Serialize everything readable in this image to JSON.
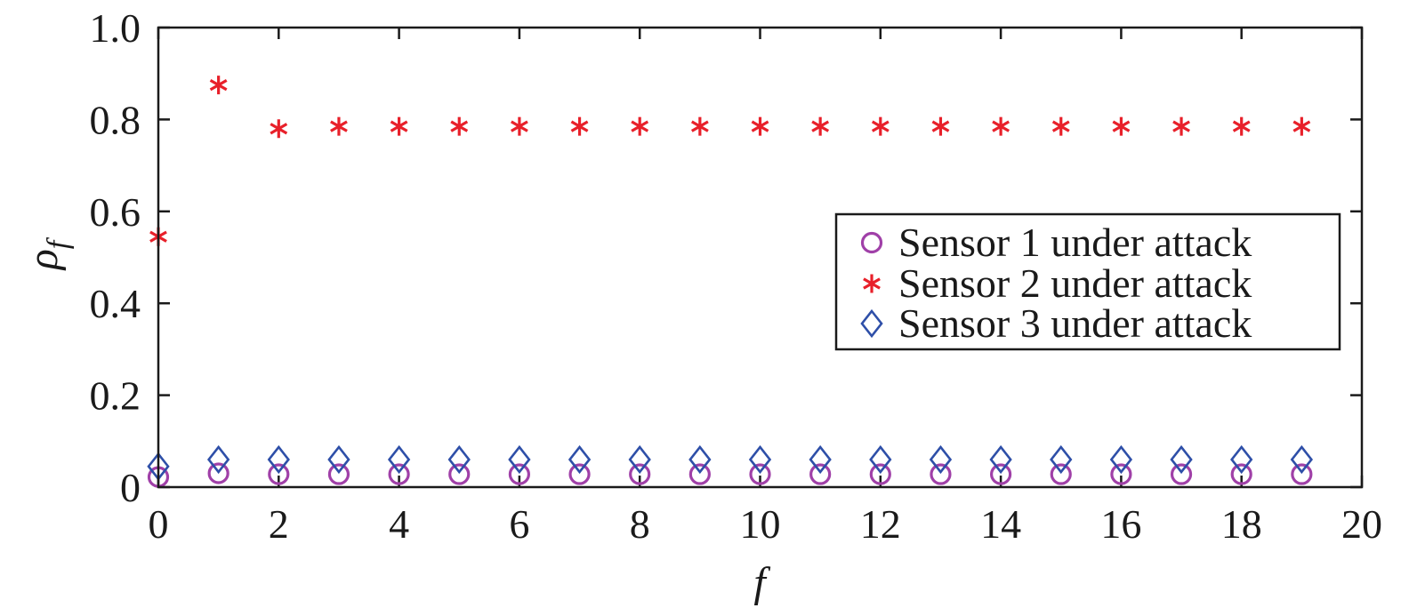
{
  "chart_data": {
    "type": "scatter",
    "title": "",
    "xlabel": "f",
    "ylabel_main": "ρ",
    "ylabel_sub": "f",
    "xlim": [
      0,
      20
    ],
    "ylim": [
      0,
      1.0
    ],
    "xticks": [
      0,
      2,
      4,
      6,
      8,
      10,
      12,
      14,
      16,
      18,
      20
    ],
    "xtick_labels": [
      "0",
      "2",
      "4",
      "6",
      "8",
      "10",
      "12",
      "14",
      "16",
      "18",
      "20"
    ],
    "yticks": [
      0,
      0.2,
      0.4,
      0.6,
      0.8,
      1.0
    ],
    "ytick_labels": [
      "0",
      "0.2",
      "0.4",
      "0.6",
      "0.8",
      "1.0"
    ],
    "grid": false,
    "legend_position": "center-right",
    "x": [
      0,
      1,
      2,
      3,
      4,
      5,
      6,
      7,
      8,
      9,
      10,
      11,
      12,
      13,
      14,
      15,
      16,
      17,
      18,
      19
    ],
    "series": [
      {
        "name": "Sensor 1 under attack",
        "marker": "circle",
        "color": "#a040a8",
        "values": [
          0.022,
          0.03,
          0.028,
          0.028,
          0.028,
          0.028,
          0.028,
          0.028,
          0.028,
          0.028,
          0.028,
          0.028,
          0.028,
          0.028,
          0.028,
          0.028,
          0.028,
          0.028,
          0.028,
          0.028
        ]
      },
      {
        "name": "Sensor 2 under attack",
        "marker": "asterisk",
        "color": "#e8202a",
        "values": [
          0.545,
          0.875,
          0.78,
          0.785,
          0.785,
          0.785,
          0.785,
          0.785,
          0.785,
          0.785,
          0.785,
          0.785,
          0.785,
          0.785,
          0.785,
          0.785,
          0.785,
          0.785,
          0.785,
          0.785
        ]
      },
      {
        "name": "Sensor 3 under attack",
        "marker": "diamond",
        "color": "#2e4fa8",
        "values": [
          0.045,
          0.06,
          0.06,
          0.06,
          0.06,
          0.06,
          0.06,
          0.06,
          0.06,
          0.06,
          0.06,
          0.06,
          0.06,
          0.06,
          0.06,
          0.06,
          0.06,
          0.06,
          0.06,
          0.06
        ]
      }
    ]
  }
}
